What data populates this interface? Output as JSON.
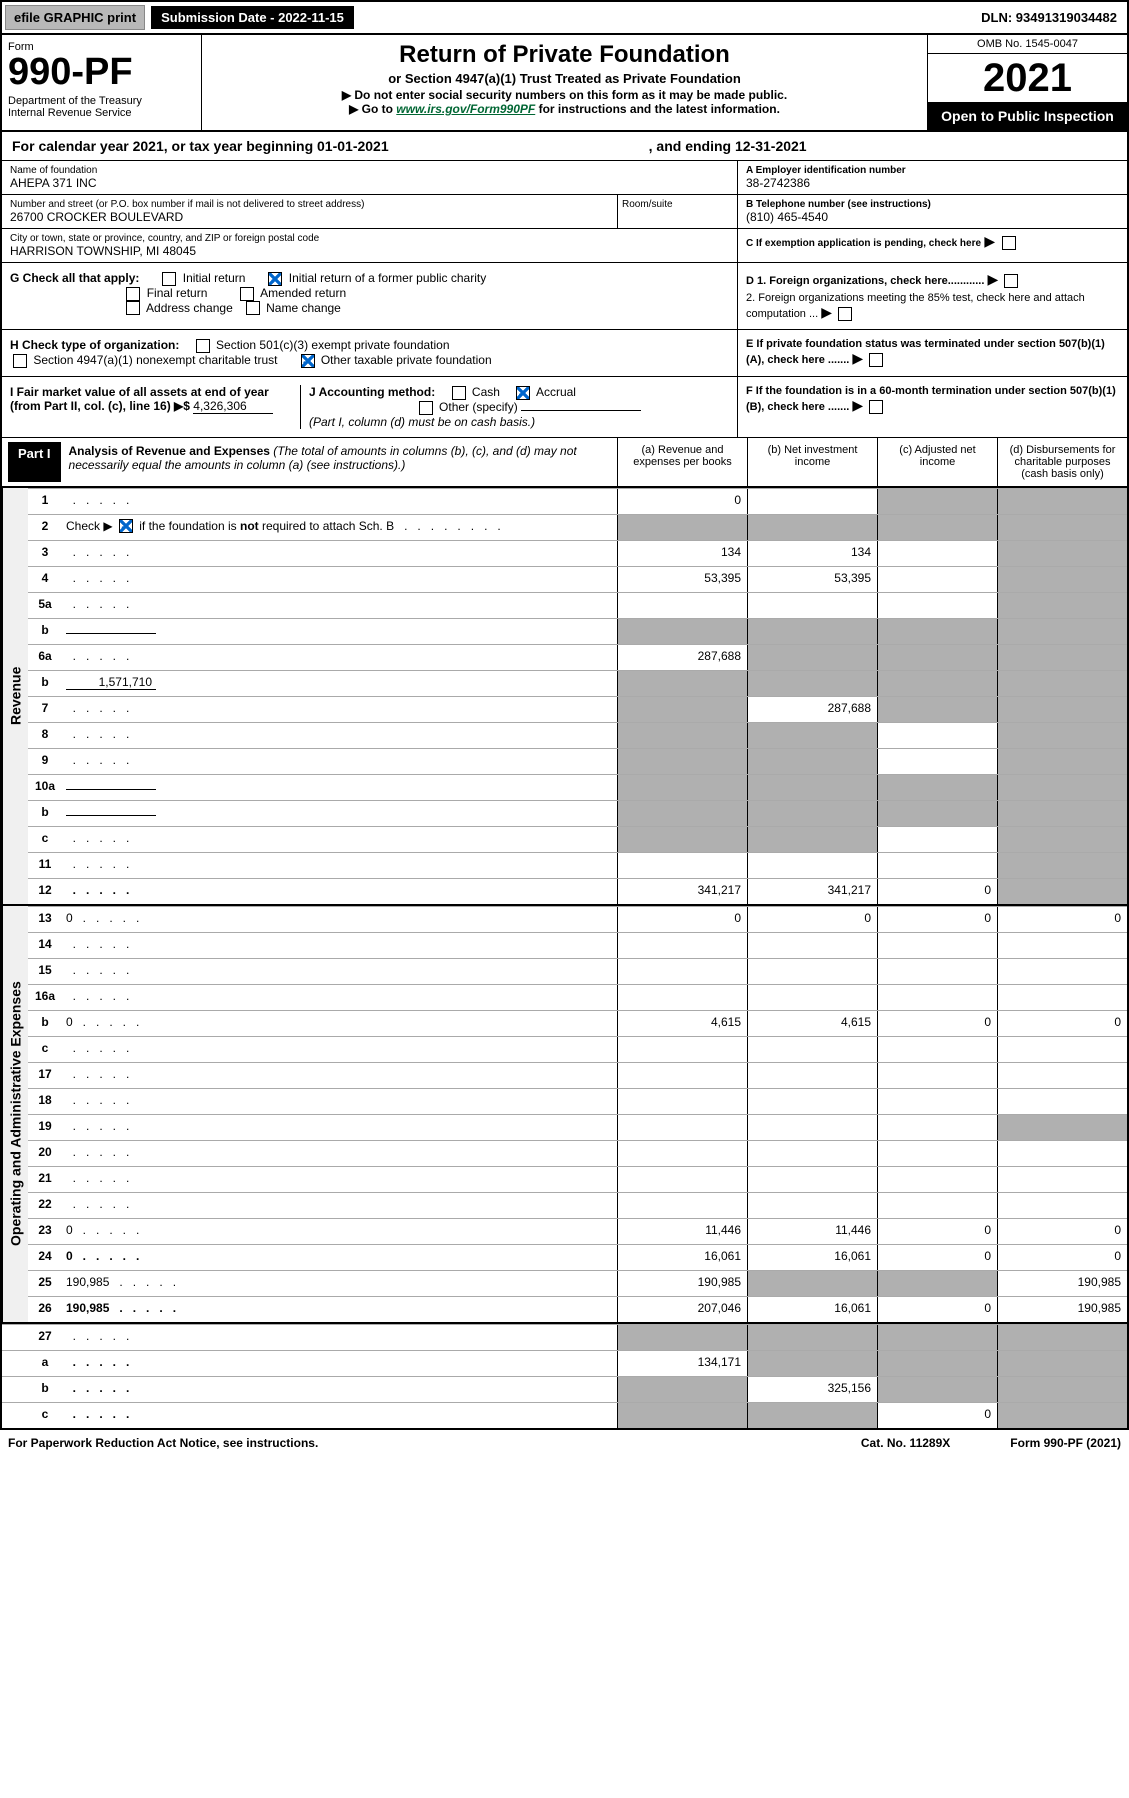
{
  "top": {
    "efile": "efile GRAPHIC print",
    "subDate": "Submission Date - 2022-11-15",
    "dln": "DLN: 93491319034482"
  },
  "header": {
    "formLabel": "Form",
    "formNum": "990-PF",
    "dept": "Department of the Treasury\nInternal Revenue Service",
    "title": "Return of Private Foundation",
    "subtitle": "or Section 4947(a)(1) Trust Treated as Private Foundation",
    "note1": "▶ Do not enter social security numbers on this form as it may be made public.",
    "note2": "▶ Go to ",
    "link": "www.irs.gov/Form990PF",
    "note3": " for instructions and the latest information.",
    "omb": "OMB No. 1545-0047",
    "year": "2021",
    "openPublic": "Open to Public Inspection"
  },
  "calYear": {
    "p1": "For calendar year 2021, or tax year beginning 01-01-2021",
    "p2": ", and ending 12-31-2021"
  },
  "info": {
    "nameLabel": "Name of foundation",
    "name": "AHEPA 371 INC",
    "addrLabel": "Number and street (or P.O. box number if mail is not delivered to street address)",
    "addr": "26700 CROCKER BOULEVARD",
    "roomLabel": "Room/suite",
    "cityLabel": "City or town, state or province, country, and ZIP or foreign postal code",
    "city": "HARRISON TOWNSHIP, MI  48045",
    "aLabel": "A Employer identification number",
    "ein": "38-2742386",
    "bLabel": "B Telephone number (see instructions)",
    "phone": "(810) 465-4540",
    "cLabel": "C If exemption application is pending, check here",
    "d1": "D 1. Foreign organizations, check here............",
    "d2": "2. Foreign organizations meeting the 85% test, check here and attach computation ...",
    "eLabel": "E  If private foundation status was terminated under section 507(b)(1)(A), check here .......",
    "fLabel": "F  If the foundation is in a 60-month termination under section 507(b)(1)(B), check here .......",
    "gLabel": "G Check all that apply:",
    "gOpts": [
      "Initial return",
      "Initial return of a former public charity",
      "Final return",
      "Amended return",
      "Address change",
      "Name change"
    ],
    "hLabel": "H Check type of organization:",
    "hOpts": [
      "Section 501(c)(3) exempt private foundation",
      "Section 4947(a)(1) nonexempt charitable trust",
      "Other taxable private foundation"
    ],
    "iLabel": "I Fair market value of all assets at end of year (from Part II, col. (c), line 16) ▶$ ",
    "iVal": "4,326,306",
    "jLabel": "J Accounting method:",
    "jOpts": [
      "Cash",
      "Accrual",
      "Other (specify)"
    ],
    "jNote": "(Part I, column (d) must be on cash basis.)"
  },
  "part1": {
    "label": "Part I",
    "title": "Analysis of Revenue and Expenses",
    "titleNote": " (The total of amounts in columns (b), (c), and (d) may not necessarily equal the amounts in column (a) (see instructions).)",
    "colA": "(a)   Revenue and expenses per books",
    "colB": "(b)  Net investment income",
    "colC": "(c)  Adjusted net income",
    "colD": "(d)  Disbursements for charitable purposes (cash basis only)"
  },
  "sideLabels": {
    "rev": "Revenue",
    "exp": "Operating and Administrative Expenses"
  },
  "lines": [
    {
      "n": "1",
      "d": "",
      "a": "0",
      "b": "",
      "c": "",
      "dS": true,
      "cS": true,
      "bS": false
    },
    {
      "n": "2",
      "d": "",
      "a": "",
      "b": "",
      "c": "",
      "aS": true,
      "bS": true,
      "cS": true,
      "dS": true,
      "isNot": true
    },
    {
      "n": "3",
      "d": "",
      "a": "134",
      "b": "134",
      "c": "",
      "dS": true
    },
    {
      "n": "4",
      "d": "",
      "a": "53,395",
      "b": "53,395",
      "c": "",
      "dS": true
    },
    {
      "n": "5a",
      "d": "",
      "a": "",
      "b": "",
      "c": "",
      "dS": true
    },
    {
      "n": "b",
      "d": "",
      "a": "",
      "b": "",
      "c": "",
      "aS": true,
      "bS": true,
      "cS": true,
      "dS": true,
      "inline": true
    },
    {
      "n": "6a",
      "d": "",
      "a": "287,688",
      "b": "",
      "c": "",
      "bS": true,
      "cS": true,
      "dS": true
    },
    {
      "n": "b",
      "d": "",
      "a": "",
      "b": "",
      "c": "",
      "aS": true,
      "bS": true,
      "cS": true,
      "dS": true,
      "inline": true,
      "inlineVal": "1,571,710"
    },
    {
      "n": "7",
      "d": "",
      "a": "",
      "b": "287,688",
      "c": "",
      "aS": true,
      "cS": true,
      "dS": true
    },
    {
      "n": "8",
      "d": "",
      "a": "",
      "b": "",
      "c": "",
      "aS": true,
      "bS": true,
      "dS": true
    },
    {
      "n": "9",
      "d": "",
      "a": "",
      "b": "",
      "c": "",
      "aS": true,
      "bS": true,
      "dS": true
    },
    {
      "n": "10a",
      "d": "",
      "a": "",
      "b": "",
      "c": "",
      "aS": true,
      "bS": true,
      "cS": true,
      "dS": true,
      "inline": true
    },
    {
      "n": "b",
      "d": "",
      "a": "",
      "b": "",
      "c": "",
      "aS": true,
      "bS": true,
      "cS": true,
      "dS": true,
      "inline": true
    },
    {
      "n": "c",
      "d": "",
      "a": "",
      "b": "",
      "c": "",
      "aS": true,
      "bS": true,
      "dS": true
    },
    {
      "n": "11",
      "d": "",
      "a": "",
      "b": "",
      "c": "",
      "dS": true
    },
    {
      "n": "12",
      "d": "",
      "a": "341,217",
      "b": "341,217",
      "c": "0",
      "dS": true,
      "bold": true
    }
  ],
  "expLines": [
    {
      "n": "13",
      "d": "0",
      "a": "0",
      "b": "0",
      "c": "0"
    },
    {
      "n": "14",
      "d": "",
      "a": "",
      "b": "",
      "c": ""
    },
    {
      "n": "15",
      "d": "",
      "a": "",
      "b": "",
      "c": ""
    },
    {
      "n": "16a",
      "d": "",
      "a": "",
      "b": "",
      "c": ""
    },
    {
      "n": "b",
      "d": "0",
      "a": "4,615",
      "b": "4,615",
      "c": "0"
    },
    {
      "n": "c",
      "d": "",
      "a": "",
      "b": "",
      "c": ""
    },
    {
      "n": "17",
      "d": "",
      "a": "",
      "b": "",
      "c": ""
    },
    {
      "n": "18",
      "d": "",
      "a": "",
      "b": "",
      "c": ""
    },
    {
      "n": "19",
      "d": "",
      "a": "",
      "b": "",
      "c": "",
      "dS": true
    },
    {
      "n": "20",
      "d": "",
      "a": "",
      "b": "",
      "c": ""
    },
    {
      "n": "21",
      "d": "",
      "a": "",
      "b": "",
      "c": ""
    },
    {
      "n": "22",
      "d": "",
      "a": "",
      "b": "",
      "c": ""
    },
    {
      "n": "23",
      "d": "0",
      "a": "11,446",
      "b": "11,446",
      "c": "0"
    },
    {
      "n": "24",
      "d": "0",
      "a": "16,061",
      "b": "16,061",
      "c": "0",
      "bold": true
    },
    {
      "n": "25",
      "d": "190,985",
      "a": "190,985",
      "b": "",
      "c": "",
      "bS": true,
      "cS": true
    },
    {
      "n": "26",
      "d": "190,985",
      "a": "207,046",
      "b": "16,061",
      "c": "0",
      "bold": true
    }
  ],
  "bottomLines": [
    {
      "n": "27",
      "d": "",
      "a": "",
      "b": "",
      "c": "",
      "aS": true,
      "bS": true,
      "cS": true,
      "dS": true
    },
    {
      "n": "a",
      "d": "",
      "a": "134,171",
      "b": "",
      "c": "",
      "bS": true,
      "cS": true,
      "dS": true,
      "bold": true
    },
    {
      "n": "b",
      "d": "",
      "a": "",
      "b": "325,156",
      "c": "",
      "aS": true,
      "cS": true,
      "dS": true,
      "bold": true
    },
    {
      "n": "c",
      "d": "",
      "a": "",
      "b": "",
      "c": "0",
      "aS": true,
      "bS": true,
      "dS": true,
      "bold": true
    }
  ],
  "footer": {
    "left": "For Paperwork Reduction Act Notice, see instructions.",
    "mid": "Cat. No. 11289X",
    "right": "Form 990-PF (2021)"
  }
}
